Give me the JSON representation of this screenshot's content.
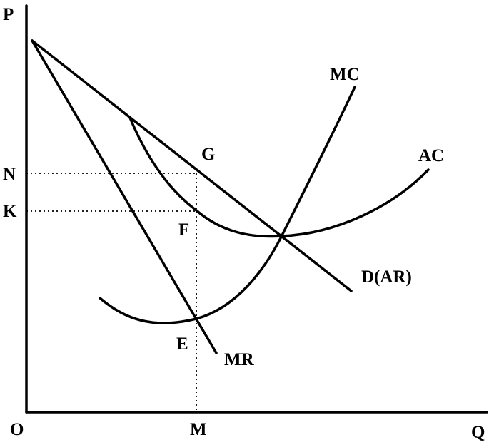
{
  "axes": {
    "y_label": "P",
    "origin_label": "O",
    "x_label": "Q"
  },
  "points": {
    "M": "M",
    "N": "N",
    "K": "K",
    "G": "G",
    "F": "F",
    "E": "E"
  },
  "curves": {
    "mc": "MC",
    "ac": "AC",
    "demand": "D(AR)",
    "mr": "MR"
  }
}
